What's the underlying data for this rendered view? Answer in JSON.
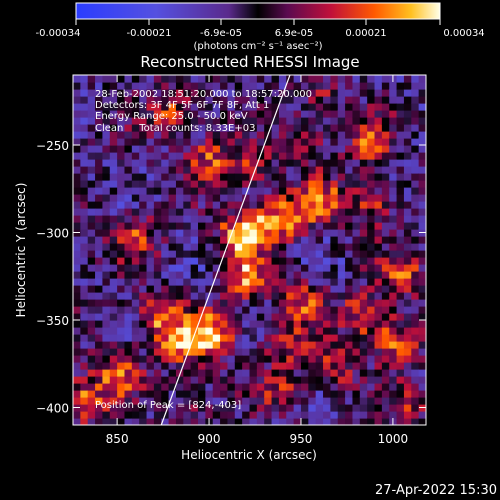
{
  "colorbar": {
    "tick_labels": [
      "-0.00034",
      "-0.00021",
      "-6.9e-05",
      "6.9e-05",
      "0.00021",
      "0.00034"
    ],
    "unit_label": "(photons cm⁻² s⁻¹ asec⁻²)",
    "min": -0.00034,
    "max": 0.00034
  },
  "chart_data": {
    "type": "heatmap",
    "title": "Reconstructed RHESSI Image",
    "xlabel": "Heliocentric X (arcsec)",
    "ylabel": "Heliocentric Y (arcsec)",
    "xlim": [
      826,
      1018
    ],
    "ylim": [
      -410,
      -210
    ],
    "xticks": [
      850,
      900,
      950,
      1000
    ],
    "yticks": [
      -250,
      -300,
      -350,
      -400
    ],
    "grid": false,
    "annotations": [
      "28-Feb-2002 18:51:20.000 to 18:57:20.000",
      "Detectors: 3F 4F 5F 6F 7F 8F, Att 1",
      "Energy Range: 25.0 - 50.0 keV",
      "Clean     Total counts: 8.33E+03"
    ],
    "peak_label": "Position of Peak = [824,-403]",
    "peak": [
      824,
      -403
    ],
    "limb_line": [
      [
        874,
        -410
      ],
      [
        944,
        -210
      ]
    ],
    "hotspots": [
      {
        "x": 918,
        "y": -300,
        "value": 0.00034
      },
      {
        "x": 902,
        "y": -358,
        "value": 0.00034
      },
      {
        "x": 938,
        "y": -292,
        "value": 0.0003
      },
      {
        "x": 960,
        "y": -283,
        "value": 0.00025
      },
      {
        "x": 988,
        "y": -283,
        "value": 0.00021
      },
      {
        "x": 988,
        "y": -248,
        "value": 0.00021
      },
      {
        "x": 1006,
        "y": -324,
        "value": 0.00021
      },
      {
        "x": 1002,
        "y": -362,
        "value": 0.00025
      },
      {
        "x": 985,
        "y": -347,
        "value": 0.00025
      },
      {
        "x": 950,
        "y": -340,
        "value": 0.00021
      },
      {
        "x": 882,
        "y": -362,
        "value": 0.00025
      },
      {
        "x": 872,
        "y": -347,
        "value": 0.00021
      },
      {
        "x": 850,
        "y": -380,
        "value": 0.00025
      },
      {
        "x": 860,
        "y": -303,
        "value": 0.00021
      },
      {
        "x": 900,
        "y": -258,
        "value": 0.00021
      },
      {
        "x": 880,
        "y": -231,
        "value": 0.00021
      },
      {
        "x": 924,
        "y": -262,
        "value": 0.00018
      },
      {
        "x": 954,
        "y": -250,
        "value": 0.00014
      },
      {
        "x": 962,
        "y": -225,
        "value": 0.00014
      },
      {
        "x": 830,
        "y": -396,
        "value": 0.0003
      },
      {
        "x": 890,
        "y": -394,
        "value": 0.00014
      },
      {
        "x": 940,
        "y": -389,
        "value": 0.00014
      },
      {
        "x": 968,
        "y": -378,
        "value": 0.00018
      },
      {
        "x": 1010,
        "y": -398,
        "value": 0.00014
      },
      {
        "x": 920,
        "y": -325,
        "value": 0.00025
      },
      {
        "x": 942,
        "y": -363,
        "value": 0.00018
      }
    ]
  },
  "footer": {
    "timestamp": "27-Apr-2022 15:30"
  }
}
